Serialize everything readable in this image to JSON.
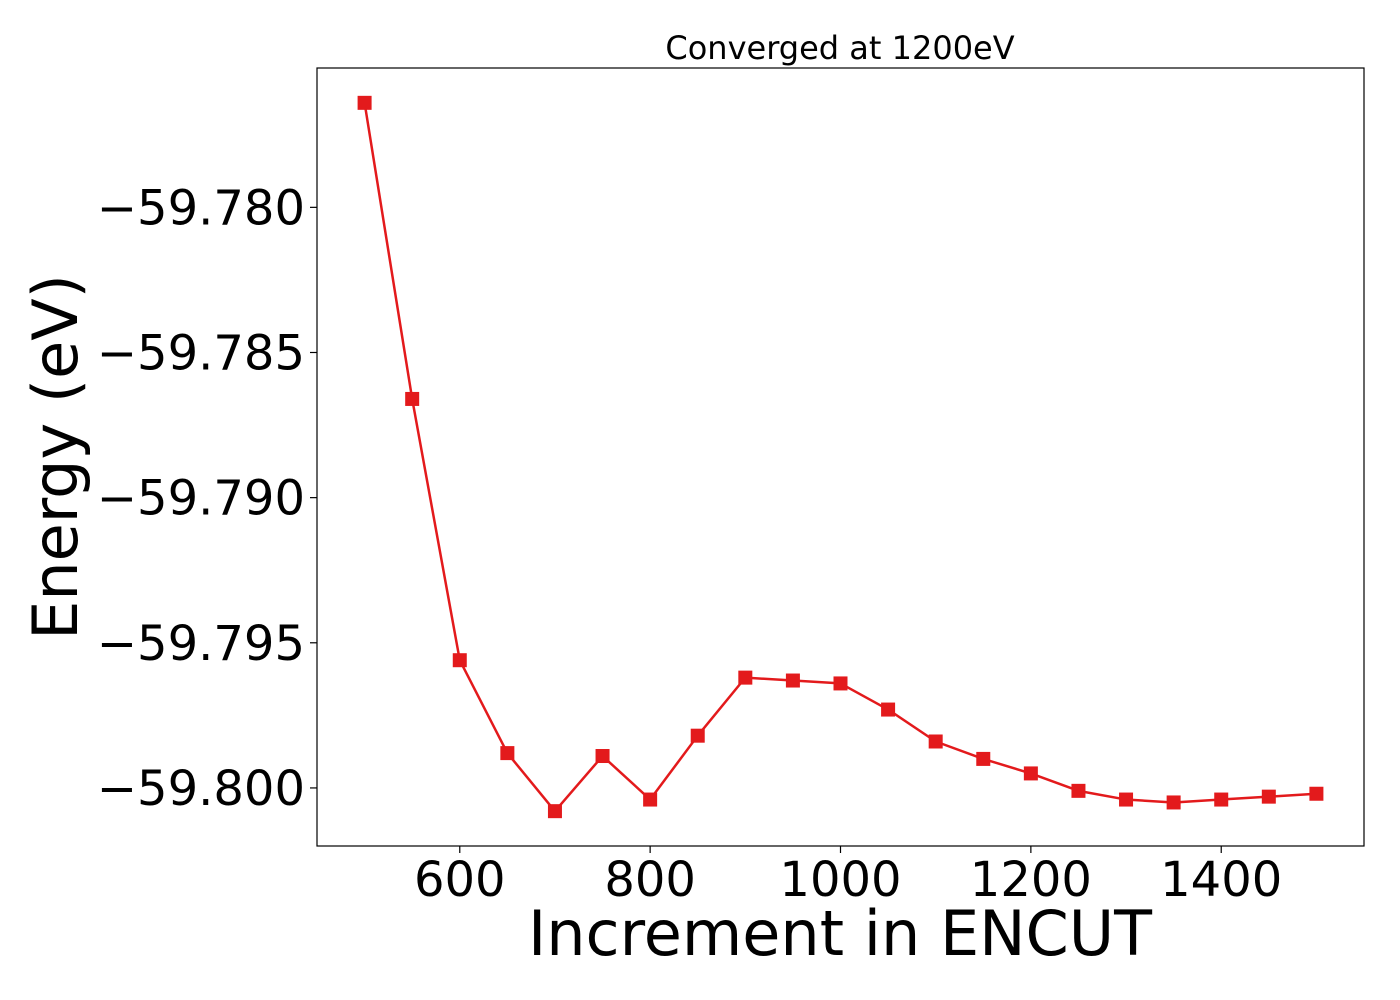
{
  "chart_data": {
    "type": "line",
    "title": "Converged at 1200eV",
    "xlabel": "Increment in ENCUT",
    "ylabel": "Energy (eV)",
    "xlim": [
      450,
      1550
    ],
    "ylim": [
      -59.802,
      -59.7752
    ],
    "x_ticks": [
      600,
      800,
      1000,
      1200,
      1400
    ],
    "x_tick_labels": [
      "600",
      "800",
      "1000",
      "1200",
      "1400"
    ],
    "y_ticks": [
      -59.78,
      -59.785,
      -59.79,
      -59.795,
      -59.8
    ],
    "y_tick_labels": [
      "−59.780",
      "−59.785",
      "−59.790",
      "−59.795",
      "−59.800"
    ],
    "grid": false,
    "series": [
      {
        "color": "#e31a1c",
        "marker": "square",
        "x": [
          500,
          550,
          600,
          650,
          700,
          750,
          800,
          850,
          900,
          950,
          1000,
          1050,
          1100,
          1150,
          1200,
          1250,
          1300,
          1350,
          1400,
          1450,
          1500
        ],
        "y": [
          -59.7764,
          -59.7866,
          -59.7956,
          -59.7988,
          -59.8008,
          -59.7989,
          -59.8004,
          -59.7982,
          -59.7962,
          -59.7963,
          -59.7964,
          -59.7973,
          -59.7984,
          -59.799,
          -59.7995,
          -59.8001,
          -59.8004,
          -59.8005,
          -59.8004,
          -59.8003,
          -59.8002
        ]
      }
    ]
  }
}
